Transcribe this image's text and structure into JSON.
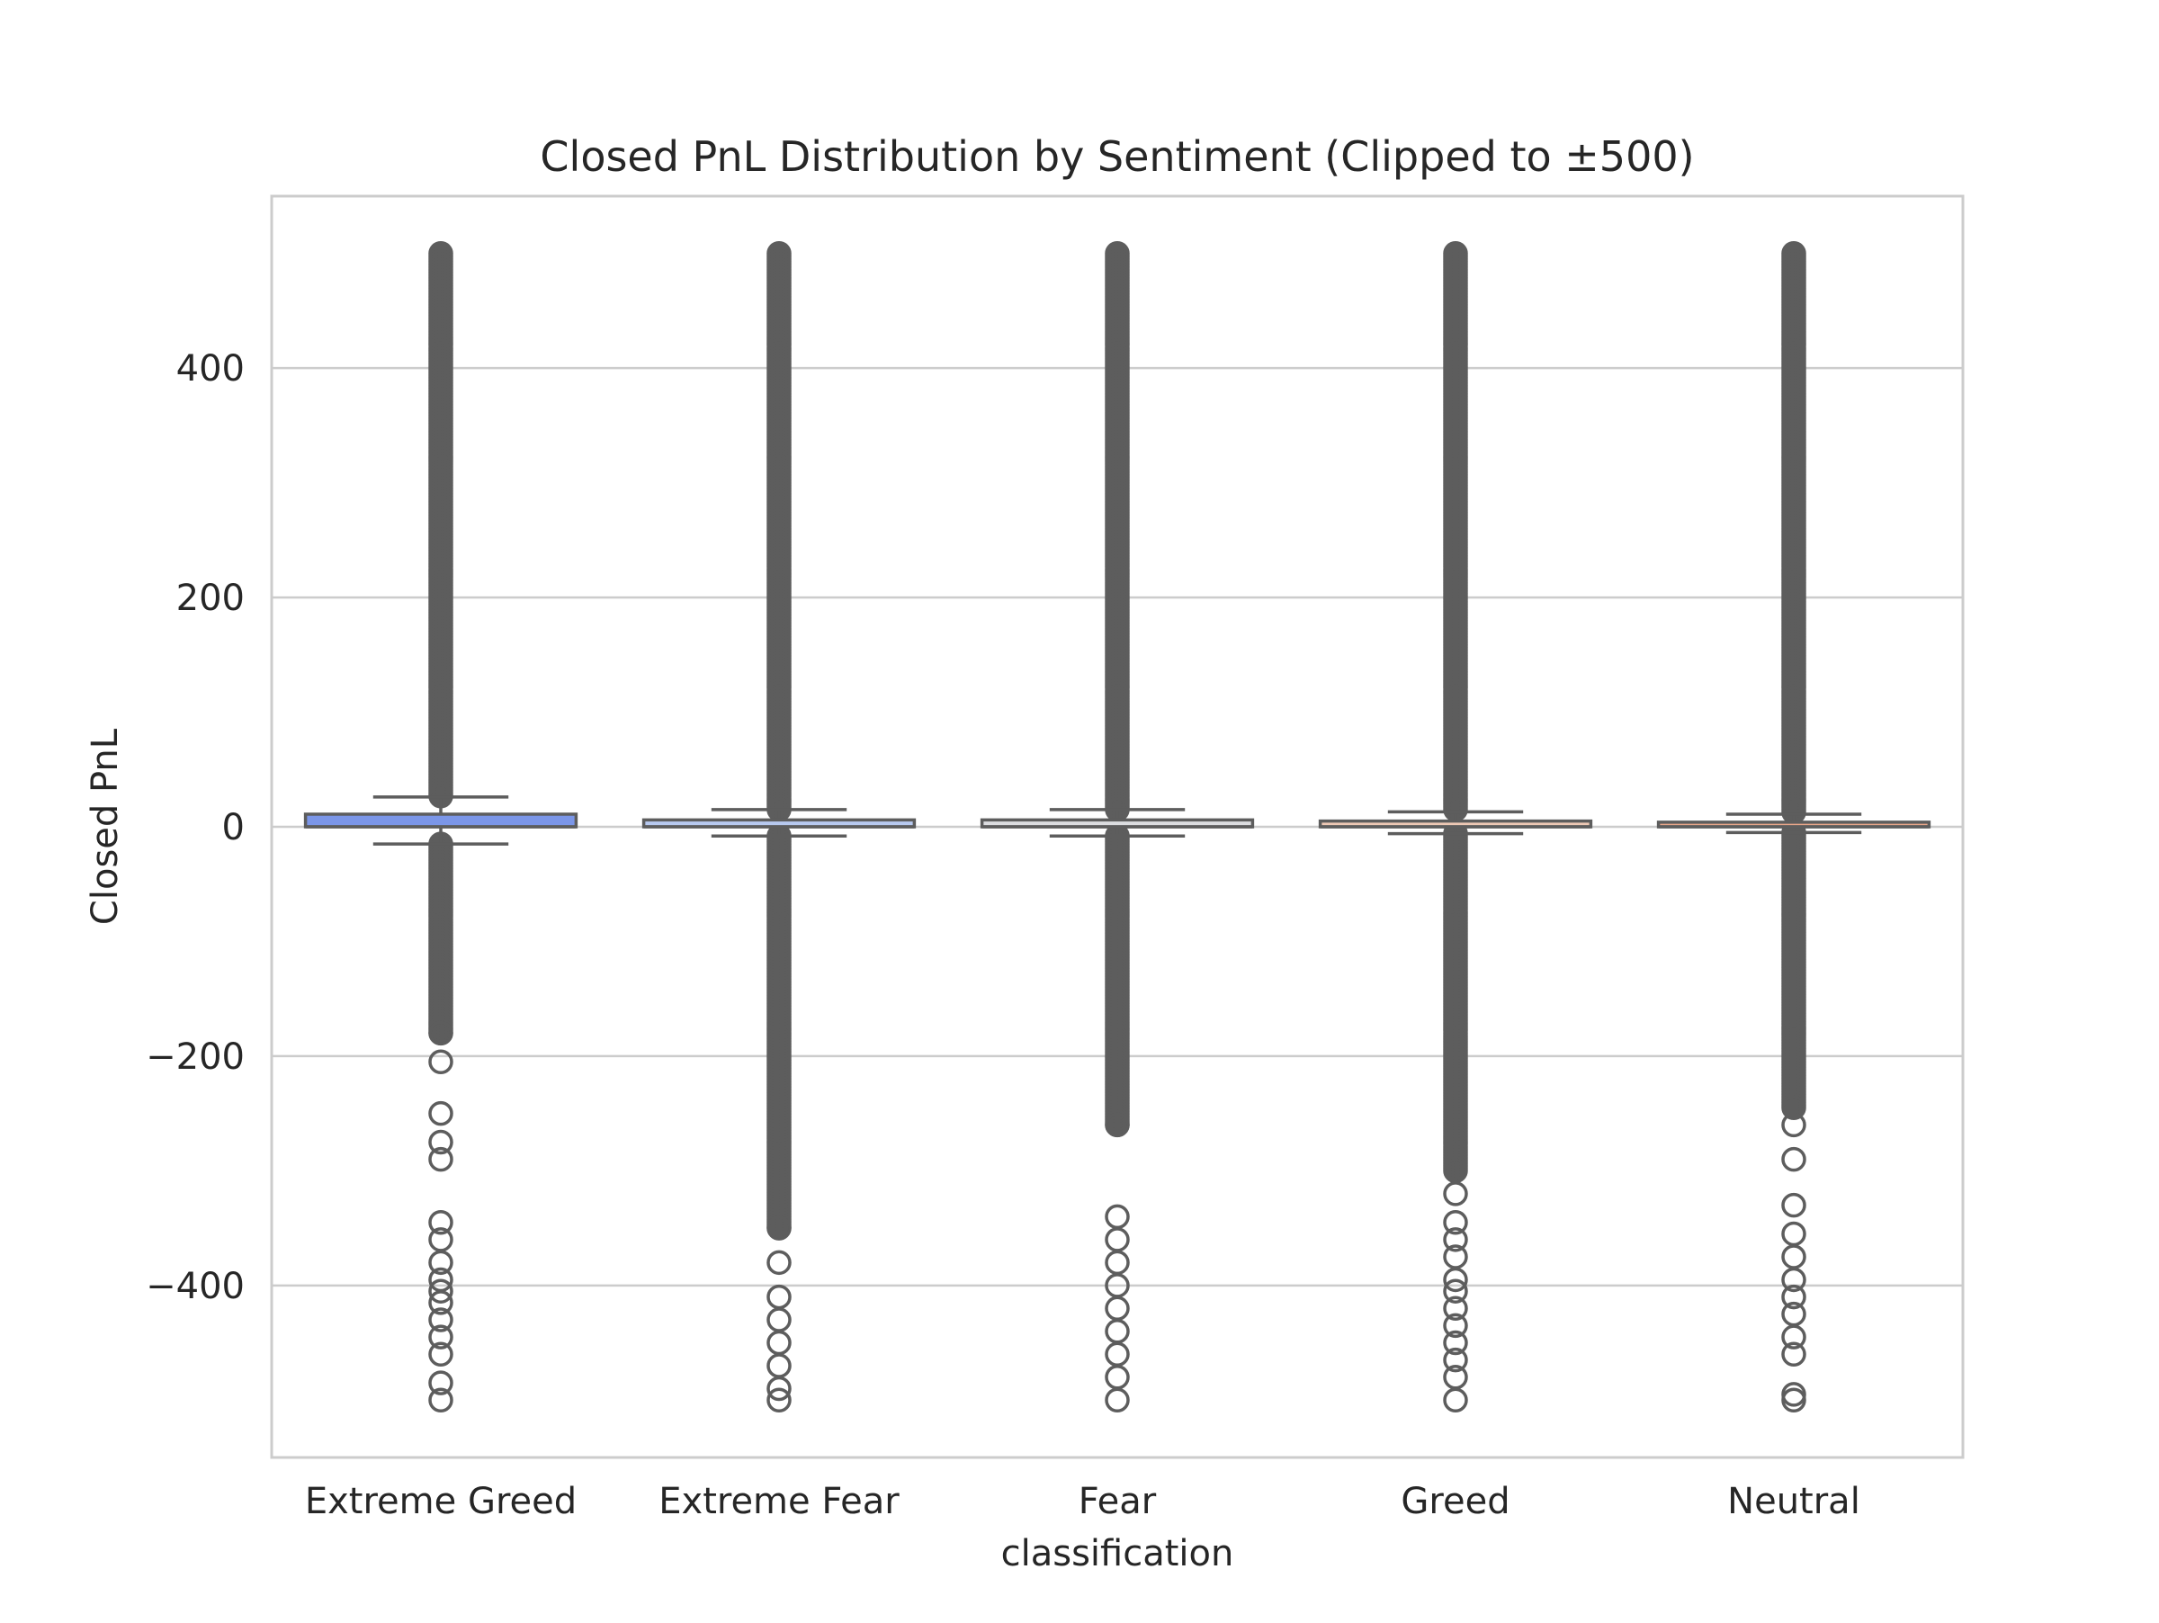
{
  "chart_data": {
    "type": "box",
    "title": "Closed PnL Distribution by Sentiment (Clipped to ±500)",
    "xlabel": "classification",
    "ylabel": "Closed PnL",
    "ylim": [
      -550,
      550
    ],
    "yticks": [
      400,
      200,
      0,
      -200,
      -400
    ],
    "ytick_labels": [
      "400",
      "200",
      "0",
      "−200",
      "−400"
    ],
    "grid": true,
    "categories": [
      "Extreme Greed",
      "Extreme Fear",
      "Fear",
      "Greed",
      "Neutral"
    ],
    "boxes": [
      {
        "name": "Extreme Greed",
        "color": "#7b96e8",
        "q1": 0,
        "median": 0,
        "q3": 11,
        "whisker_low": -15,
        "whisker_high": 26,
        "upper_outliers_range": [
          26,
          500
        ],
        "lower_outliers_range": [
          -500,
          -15
        ],
        "sparse_lower_outliers": [
          -180,
          -205,
          -250,
          -275,
          -290,
          -345,
          -360,
          -380,
          -395,
          -405,
          -415,
          -430,
          -445,
          -460,
          -485,
          -500
        ]
      },
      {
        "name": "Extreme Fear",
        "color": "#b7c9ef",
        "q1": 0,
        "median": 0,
        "q3": 6,
        "whisker_low": -8,
        "whisker_high": 15,
        "upper_outliers_range": [
          15,
          500
        ],
        "lower_outliers_range": [
          -500,
          -8
        ],
        "sparse_lower_outliers": [
          -350,
          -380,
          -410,
          -430,
          -450,
          -470,
          -490,
          -500
        ]
      },
      {
        "name": "Fear",
        "color": "#dcdde0",
        "q1": 0,
        "median": 0,
        "q3": 6,
        "whisker_low": -8,
        "whisker_high": 15,
        "upper_outliers_range": [
          15,
          500
        ],
        "lower_outliers_range": [
          -500,
          -8
        ],
        "sparse_lower_outliers": [
          -260,
          -340,
          -360,
          -380,
          -400,
          -420,
          -440,
          -460,
          -480,
          -500
        ]
      },
      {
        "name": "Greed",
        "color": "#eec9b5",
        "q1": 0,
        "median": 0,
        "q3": 5,
        "whisker_low": -6,
        "whisker_high": 13,
        "upper_outliers_range": [
          13,
          500
        ],
        "lower_outliers_range": [
          -500,
          -6
        ],
        "sparse_lower_outliers": [
          -300,
          -320,
          -345,
          -360,
          -375,
          -395,
          -405,
          -420,
          -435,
          -450,
          -465,
          -480,
          -500
        ]
      },
      {
        "name": "Neutral",
        "color": "#e9a68a",
        "q1": 0,
        "median": 0,
        "q3": 4,
        "whisker_low": -5,
        "whisker_high": 11,
        "upper_outliers_range": [
          11,
          500
        ],
        "lower_outliers_range": [
          -500,
          -5
        ],
        "sparse_lower_outliers": [
          -245,
          -260,
          -290,
          -330,
          -355,
          -375,
          -395,
          -410,
          -425,
          -445,
          -460,
          -495,
          -500
        ]
      }
    ]
  }
}
